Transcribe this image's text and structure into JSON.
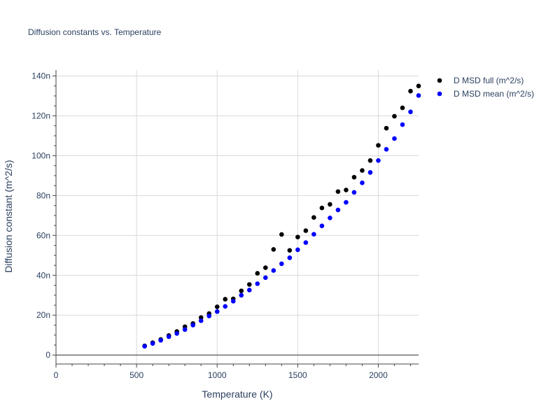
{
  "chart_data": {
    "type": "scatter",
    "title": "Diffusion constants vs. Temperature",
    "xlabel": "Temperature (K)",
    "ylabel": "Diffusion constant (m^2/s)",
    "xlim": [
      0,
      2250
    ],
    "ylim": [
      -4.5,
      143
    ],
    "x_ticks": [
      0,
      500,
      1000,
      1500,
      2000
    ],
    "x_tick_labels": [
      "0",
      "500",
      "1000",
      "1500",
      "2000"
    ],
    "y_ticks": [
      0,
      20,
      40,
      60,
      80,
      100,
      120,
      140
    ],
    "y_tick_labels": [
      "0",
      "20n",
      "40n",
      "60n",
      "80n",
      "100n",
      "120n",
      "140n"
    ],
    "grid": true,
    "legend_position": "top-right-outside",
    "series": [
      {
        "name": "D MSD full (m^2/s)",
        "color": "#000000",
        "x": [
          550,
          600,
          650,
          700,
          750,
          800,
          850,
          900,
          950,
          1000,
          1050,
          1100,
          1150,
          1200,
          1250,
          1300,
          1350,
          1400,
          1450,
          1500,
          1550,
          1600,
          1650,
          1700,
          1750,
          1800,
          1850,
          1900,
          1950,
          2000,
          2050,
          2100,
          2150,
          2200,
          2250
        ],
        "y": [
          4.6,
          6.2,
          7.8,
          9.8,
          11.8,
          14.2,
          15.8,
          18.8,
          20.8,
          24.2,
          28,
          28.2,
          32.2,
          35.4,
          41,
          43.8,
          53,
          60.5,
          52.5,
          59.2,
          62.4,
          69,
          73.8,
          75.6,
          82,
          82.8,
          89.2,
          92.6,
          97.6,
          105.2,
          113.8,
          119.8,
          124,
          132.4,
          135
        ]
      },
      {
        "name": "D MSD mean (m^2/s)",
        "color": "#0000ff",
        "x": [
          550,
          600,
          650,
          700,
          750,
          800,
          850,
          900,
          950,
          1000,
          1050,
          1100,
          1150,
          1200,
          1250,
          1300,
          1350,
          1400,
          1450,
          1500,
          1550,
          1600,
          1650,
          1700,
          1750,
          1800,
          1850,
          1900,
          1950,
          2000,
          2050,
          2100,
          2150,
          2200,
          2250
        ],
        "y": [
          4.4,
          5.8,
          7.4,
          9.2,
          10.8,
          12.8,
          15,
          17.2,
          19.6,
          21.8,
          24.4,
          27,
          30,
          32.6,
          35.8,
          38.8,
          42.4,
          45.8,
          48.8,
          52.8,
          56.4,
          60.6,
          64.8,
          68.8,
          72.8,
          76.6,
          81.6,
          86.4,
          91.6,
          97.6,
          103.2,
          108.6,
          115.6,
          122,
          130.2
        ]
      }
    ]
  }
}
